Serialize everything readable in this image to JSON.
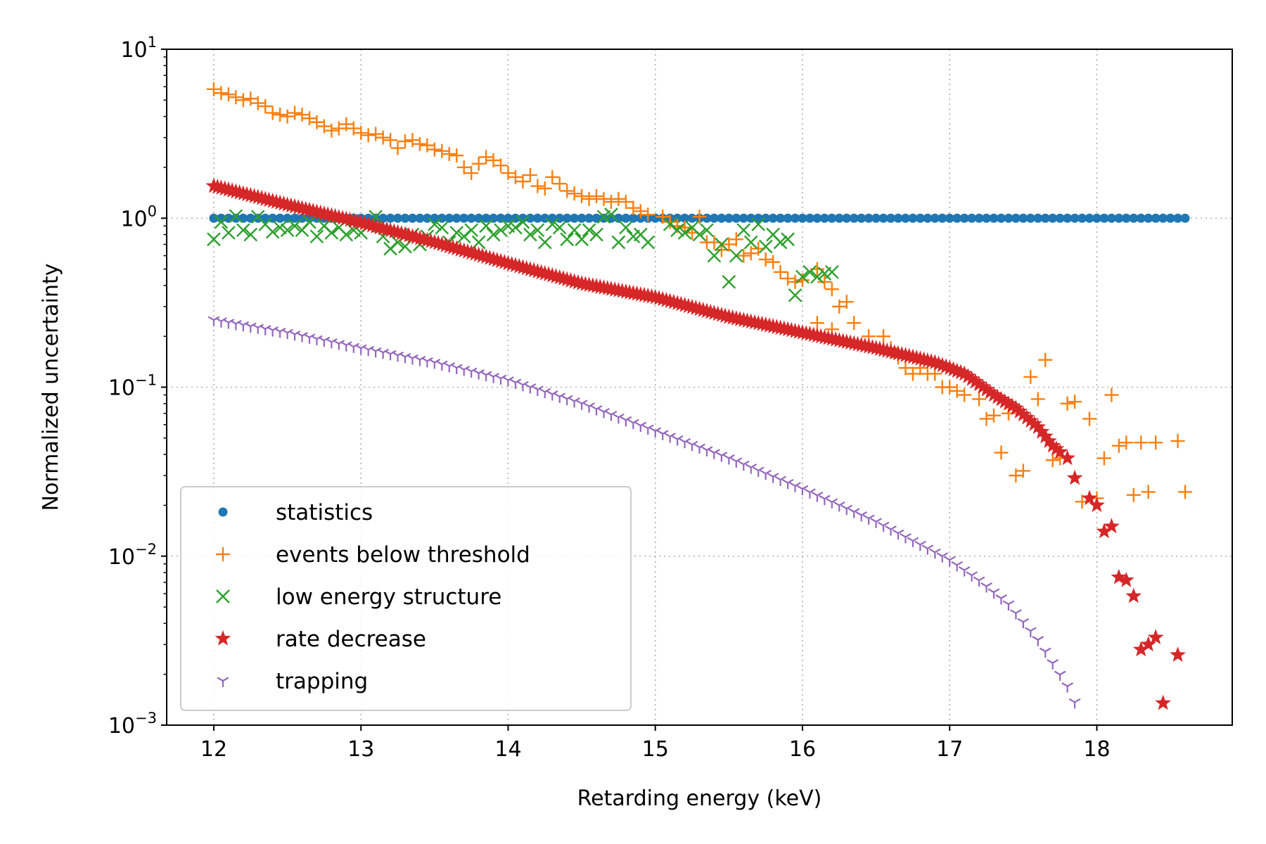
{
  "chart_data": {
    "type": "scatter",
    "xlabel": "Retarding energy (keV)",
    "ylabel": "Normalized uncertainty",
    "xlim": [
      11.68,
      18.92
    ],
    "ylim": [
      0.001,
      10
    ],
    "yscale": "log",
    "grid": true,
    "legend_position": "lower-left",
    "xticks": [
      12,
      13,
      14,
      15,
      16,
      17,
      18
    ],
    "xtick_labels": [
      "12",
      "13",
      "14",
      "15",
      "16",
      "17",
      "18"
    ],
    "yticks": [
      {
        "value": 10,
        "base": "10",
        "exp": "1"
      },
      {
        "value": 1,
        "base": "10",
        "exp": "0"
      },
      {
        "value": 0.1,
        "base": "10",
        "exp": "−1"
      },
      {
        "value": 0.01,
        "base": "10",
        "exp": "−2"
      },
      {
        "value": 0.001,
        "base": "10",
        "exp": "−3"
      }
    ],
    "series": [
      {
        "name": "statistics",
        "color": "#1f77b4",
        "marker": "dot",
        "x_start": 12.0,
        "x_end": 18.6,
        "x_step": 0.05,
        "constant_value": 1.0
      },
      {
        "name": "events below threshold",
        "color": "#ff7f0e",
        "marker": "plus",
        "points": [
          [
            12.0,
            5.8
          ],
          [
            12.05,
            5.5
          ],
          [
            12.1,
            5.4
          ],
          [
            12.15,
            5.2
          ],
          [
            12.2,
            5.0
          ],
          [
            12.25,
            5.1
          ],
          [
            12.3,
            4.8
          ],
          [
            12.35,
            4.6
          ],
          [
            12.4,
            4.2
          ],
          [
            12.45,
            4.1
          ],
          [
            12.5,
            4.0
          ],
          [
            12.55,
            4.2
          ],
          [
            12.6,
            4.1
          ],
          [
            12.65,
            3.9
          ],
          [
            12.7,
            3.7
          ],
          [
            12.75,
            3.5
          ],
          [
            12.8,
            3.3
          ],
          [
            12.85,
            3.4
          ],
          [
            12.9,
            3.6
          ],
          [
            12.95,
            3.4
          ],
          [
            13.0,
            3.2
          ],
          [
            13.05,
            3.1
          ],
          [
            13.1,
            3.15
          ],
          [
            13.15,
            3.0
          ],
          [
            13.2,
            2.9
          ],
          [
            13.25,
            2.6
          ],
          [
            13.3,
            2.85
          ],
          [
            13.35,
            2.9
          ],
          [
            13.4,
            2.75
          ],
          [
            13.45,
            2.7
          ],
          [
            13.5,
            2.55
          ],
          [
            13.55,
            2.5
          ],
          [
            13.6,
            2.4
          ],
          [
            13.65,
            2.35
          ],
          [
            13.7,
            2.0
          ],
          [
            13.75,
            1.85
          ],
          [
            13.8,
            2.1
          ],
          [
            13.85,
            2.3
          ],
          [
            13.9,
            2.2
          ],
          [
            13.95,
            2.05
          ],
          [
            14.0,
            1.85
          ],
          [
            14.05,
            1.75
          ],
          [
            14.1,
            1.65
          ],
          [
            14.15,
            1.8
          ],
          [
            14.2,
            1.55
          ],
          [
            14.25,
            1.5
          ],
          [
            14.3,
            1.75
          ],
          [
            14.35,
            1.6
          ],
          [
            14.4,
            1.45
          ],
          [
            14.45,
            1.4
          ],
          [
            14.5,
            1.35
          ],
          [
            14.55,
            1.3
          ],
          [
            14.6,
            1.35
          ],
          [
            14.65,
            1.3
          ],
          [
            14.7,
            1.25
          ],
          [
            14.75,
            1.3
          ],
          [
            14.8,
            1.25
          ],
          [
            14.85,
            1.15
          ],
          [
            14.9,
            1.1
          ],
          [
            14.95,
            1.05
          ],
          [
            15.05,
            1.02
          ],
          [
            15.1,
            0.95
          ],
          [
            15.15,
            0.9
          ],
          [
            15.2,
            0.88
          ],
          [
            15.25,
            0.82
          ],
          [
            15.3,
            1.02
          ],
          [
            15.35,
            0.72
          ],
          [
            15.4,
            0.72
          ],
          [
            15.45,
            0.65
          ],
          [
            15.5,
            0.7
          ],
          [
            15.55,
            0.75
          ],
          [
            15.6,
            0.6
          ],
          [
            15.65,
            0.62
          ],
          [
            15.7,
            0.66
          ],
          [
            15.75,
            0.57
          ],
          [
            15.8,
            0.55
          ],
          [
            15.85,
            0.48
          ],
          [
            15.9,
            0.44
          ],
          [
            15.95,
            0.42
          ],
          [
            16.0,
            0.43
          ],
          [
            16.1,
            0.5
          ],
          [
            16.15,
            0.42
          ],
          [
            16.2,
            0.38
          ],
          [
            16.25,
            0.3
          ],
          [
            16.3,
            0.32
          ],
          [
            16.1,
            0.24
          ],
          [
            16.2,
            0.22
          ],
          [
            16.35,
            0.24
          ],
          [
            16.45,
            0.2
          ],
          [
            16.55,
            0.2
          ],
          [
            16.6,
            0.17
          ],
          [
            16.65,
            0.15
          ],
          [
            16.7,
            0.13
          ],
          [
            16.75,
            0.12
          ],
          [
            16.8,
            0.13
          ],
          [
            16.85,
            0.12
          ],
          [
            16.9,
            0.12
          ],
          [
            16.95,
            0.1
          ],
          [
            17.0,
            0.1
          ],
          [
            17.05,
            0.095
          ],
          [
            17.1,
            0.09
          ],
          [
            17.2,
            0.085
          ],
          [
            17.25,
            0.065
          ],
          [
            17.3,
            0.068
          ],
          [
            17.4,
            0.07
          ],
          [
            17.35,
            0.041
          ],
          [
            17.45,
            0.03
          ],
          [
            17.5,
            0.032
          ],
          [
            17.55,
            0.115
          ],
          [
            17.6,
            0.085
          ],
          [
            17.65,
            0.145
          ],
          [
            17.7,
            0.037
          ],
          [
            17.75,
            0.038
          ],
          [
            17.8,
            0.08
          ],
          [
            17.85,
            0.082
          ],
          [
            17.9,
            0.021
          ],
          [
            17.95,
            0.065
          ],
          [
            18.0,
            0.022
          ],
          [
            18.05,
            0.038
          ],
          [
            18.1,
            0.09
          ],
          [
            18.15,
            0.045
          ],
          [
            18.2,
            0.047
          ],
          [
            18.25,
            0.023
          ],
          [
            18.3,
            0.047
          ],
          [
            18.35,
            0.024
          ],
          [
            18.4,
            0.047
          ],
          [
            18.55,
            0.048
          ],
          [
            18.6,
            0.024
          ]
        ]
      },
      {
        "name": "low energy structure",
        "color": "#2ca02c",
        "marker": "x",
        "points": [
          [
            12.0,
            0.75
          ],
          [
            12.05,
            0.95
          ],
          [
            12.1,
            0.82
          ],
          [
            12.15,
            1.03
          ],
          [
            12.2,
            0.85
          ],
          [
            12.25,
            0.8
          ],
          [
            12.3,
            1.02
          ],
          [
            12.35,
            0.92
          ],
          [
            12.4,
            0.83
          ],
          [
            12.45,
            0.88
          ],
          [
            12.5,
            0.85
          ],
          [
            12.55,
            0.9
          ],
          [
            12.6,
            0.85
          ],
          [
            12.65,
            0.95
          ],
          [
            12.7,
            0.78
          ],
          [
            12.75,
            0.9
          ],
          [
            12.8,
            0.82
          ],
          [
            12.85,
            0.88
          ],
          [
            12.9,
            0.8
          ],
          [
            12.95,
            0.85
          ],
          [
            13.0,
            0.82
          ],
          [
            13.05,
            0.9
          ],
          [
            13.1,
            1.02
          ],
          [
            13.15,
            0.78
          ],
          [
            13.2,
            0.66
          ],
          [
            13.25,
            0.72
          ],
          [
            13.3,
            0.68
          ],
          [
            13.35,
            0.8
          ],
          [
            13.4,
            0.7
          ],
          [
            13.45,
            0.78
          ],
          [
            13.5,
            0.92
          ],
          [
            13.55,
            0.88
          ],
          [
            13.6,
            0.72
          ],
          [
            13.65,
            0.82
          ],
          [
            13.7,
            0.78
          ],
          [
            13.75,
            0.85
          ],
          [
            13.8,
            0.72
          ],
          [
            13.85,
            0.9
          ],
          [
            13.9,
            0.8
          ],
          [
            13.95,
            0.85
          ],
          [
            14.0,
            0.9
          ],
          [
            14.05,
            0.88
          ],
          [
            14.1,
            0.95
          ],
          [
            14.15,
            0.8
          ],
          [
            14.2,
            0.85
          ],
          [
            14.25,
            0.72
          ],
          [
            14.3,
            0.92
          ],
          [
            14.35,
            0.88
          ],
          [
            14.4,
            0.75
          ],
          [
            14.45,
            0.85
          ],
          [
            14.5,
            0.75
          ],
          [
            14.55,
            0.85
          ],
          [
            14.6,
            0.8
          ],
          [
            14.65,
            1.02
          ],
          [
            14.7,
            1.05
          ],
          [
            14.75,
            0.72
          ],
          [
            14.8,
            0.88
          ],
          [
            14.85,
            0.78
          ],
          [
            14.9,
            0.8
          ],
          [
            14.95,
            0.72
          ],
          [
            15.1,
            0.92
          ],
          [
            15.15,
            0.85
          ],
          [
            15.2,
            0.82
          ],
          [
            15.25,
            0.88
          ],
          [
            15.3,
            0.8
          ],
          [
            15.35,
            0.85
          ],
          [
            15.4,
            0.6
          ],
          [
            15.45,
            0.7
          ],
          [
            15.5,
            0.42
          ],
          [
            15.55,
            0.6
          ],
          [
            15.6,
            0.85
          ],
          [
            15.65,
            0.72
          ],
          [
            15.7,
            0.92
          ],
          [
            15.75,
            0.68
          ],
          [
            15.8,
            0.8
          ],
          [
            15.85,
            0.72
          ],
          [
            15.9,
            0.75
          ],
          [
            15.95,
            0.35
          ],
          [
            16.0,
            0.45
          ],
          [
            16.05,
            0.48
          ],
          [
            16.1,
            0.45
          ],
          [
            16.15,
            0.47
          ],
          [
            16.2,
            0.48
          ]
        ]
      },
      {
        "name": "rate decrease",
        "color": "#d62728",
        "marker": "star",
        "points": [
          [
            12.0,
            1.55
          ],
          [
            12.5,
            1.2
          ],
          [
            13.0,
            0.94
          ],
          [
            13.5,
            0.72
          ],
          [
            14.0,
            0.54
          ],
          [
            14.5,
            0.41
          ],
          [
            15.0,
            0.34
          ],
          [
            15.5,
            0.26
          ],
          [
            16.0,
            0.21
          ],
          [
            16.5,
            0.17
          ],
          [
            16.9,
            0.14
          ],
          [
            17.1,
            0.12
          ],
          [
            17.3,
            0.09
          ],
          [
            17.45,
            0.075
          ],
          [
            17.6,
            0.058
          ],
          [
            17.7,
            0.045
          ],
          [
            17.8,
            0.038
          ],
          [
            17.85,
            0.029
          ],
          [
            17.95,
            0.022
          ],
          [
            18.0,
            0.02
          ],
          [
            18.05,
            0.014
          ],
          [
            18.1,
            0.015
          ],
          [
            18.15,
            0.0075
          ],
          [
            18.2,
            0.0072
          ],
          [
            18.25,
            0.0058
          ],
          [
            18.3,
            0.0028
          ],
          [
            18.35,
            0.003
          ],
          [
            18.4,
            0.0033
          ],
          [
            18.45,
            0.00135
          ],
          [
            18.55,
            0.0026
          ]
        ]
      },
      {
        "name": "trapping",
        "color": "#9467bd",
        "marker": "tri_down",
        "points": [
          [
            12.0,
            0.25
          ],
          [
            12.5,
            0.21
          ],
          [
            13.0,
            0.17
          ],
          [
            13.5,
            0.14
          ],
          [
            14.0,
            0.11
          ],
          [
            14.5,
            0.08
          ],
          [
            15.0,
            0.055
          ],
          [
            15.5,
            0.038
          ],
          [
            16.0,
            0.025
          ],
          [
            16.5,
            0.016
          ],
          [
            17.0,
            0.0095
          ],
          [
            17.2,
            0.0072
          ],
          [
            17.4,
            0.0052
          ],
          [
            17.6,
            0.0032
          ],
          [
            17.8,
            0.0017
          ],
          [
            17.9,
            0.0011
          ]
        ]
      }
    ]
  }
}
